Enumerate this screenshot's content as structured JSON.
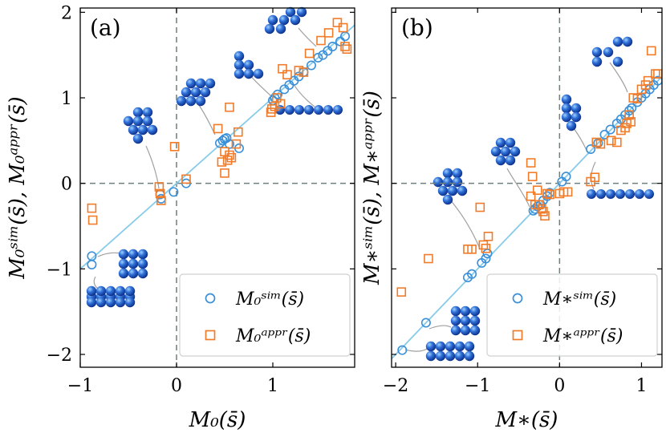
{
  "chart_data": [
    {
      "type": "scatter",
      "panel_label": "(a)",
      "xlabel": "M₀(s̄)",
      "ylabel": "M₀ˢⁱᵐ(s̄), M₀ᵃᵖᵖʳ(s̄)",
      "xlim": [
        -1,
        1.85
      ],
      "ylim": [
        -2.15,
        2.05
      ],
      "xticks": [
        -1,
        0,
        1
      ],
      "yticks": [
        -2,
        -1,
        0,
        1,
        2
      ],
      "xtick_labels": [
        "−1",
        "0",
        "1"
      ],
      "ytick_labels": [
        "−2",
        "−1",
        "0",
        "1",
        "2"
      ],
      "legend": [
        {
          "name": "sim",
          "label": "M₀ˢⁱᵐ(s̄)",
          "marker": "circle",
          "color": "#3a8fd9"
        },
        {
          "name": "appr",
          "label": "M₀ᵃᵖᵖʳ(s̄)",
          "marker": "square",
          "color": "#f07c2a"
        }
      ],
      "legend_position": "bottom-right",
      "diagonal": true,
      "series": [
        {
          "name": "sim",
          "points": [
            [
              -0.88,
              -0.85
            ],
            [
              -0.88,
              -0.95
            ],
            [
              -0.17,
              -0.13
            ],
            [
              -0.16,
              -0.18
            ],
            [
              -0.03,
              -0.1
            ],
            [
              0.1,
              0.0
            ],
            [
              0.45,
              0.47
            ],
            [
              0.48,
              0.5
            ],
            [
              0.5,
              0.52
            ],
            [
              0.52,
              0.53
            ],
            [
              0.55,
              0.46
            ],
            [
              0.65,
              0.41
            ],
            [
              1.0,
              0.97
            ],
            [
              1.02,
              1.0
            ],
            [
              1.05,
              1.04
            ],
            [
              1.12,
              1.1
            ],
            [
              1.17,
              1.15
            ],
            [
              1.22,
              1.2
            ],
            [
              1.27,
              1.25
            ],
            [
              1.32,
              1.3
            ],
            [
              1.4,
              1.38
            ],
            [
              1.47,
              1.47
            ],
            [
              1.52,
              1.5
            ],
            [
              1.57,
              1.55
            ],
            [
              1.62,
              1.6
            ],
            [
              1.7,
              1.66
            ],
            [
              1.75,
              1.72
            ]
          ]
        },
        {
          "name": "appr",
          "points": [
            [
              -0.88,
              -0.29
            ],
            [
              -0.87,
              -0.43
            ],
            [
              -0.18,
              -0.04
            ],
            [
              -0.17,
              -0.12
            ],
            [
              -0.16,
              -0.2
            ],
            [
              -0.02,
              0.43
            ],
            [
              0.1,
              0.05
            ],
            [
              0.43,
              0.64
            ],
            [
              0.47,
              0.25
            ],
            [
              0.5,
              0.12
            ],
            [
              0.5,
              0.37
            ],
            [
              0.53,
              0.27
            ],
            [
              0.55,
              0.89
            ],
            [
              0.55,
              0.33
            ],
            [
              0.57,
              0.3
            ],
            [
              0.62,
              0.46
            ],
            [
              0.64,
              0.6
            ],
            [
              0.98,
              0.83
            ],
            [
              0.99,
              0.87
            ],
            [
              1.02,
              0.9
            ],
            [
              1.04,
              1.0
            ],
            [
              1.08,
              0.93
            ],
            [
              1.1,
              1.34
            ],
            [
              1.15,
              1.27
            ],
            [
              1.27,
              1.32
            ],
            [
              1.32,
              1.3
            ],
            [
              1.38,
              1.52
            ],
            [
              1.5,
              1.67
            ],
            [
              1.58,
              1.76
            ],
            [
              1.67,
              1.88
            ],
            [
              1.73,
              1.82
            ],
            [
              1.75,
              1.6
            ],
            [
              1.77,
              1.57
            ]
          ]
        }
      ]
    },
    {
      "type": "scatter",
      "panel_label": "(b)",
      "xlabel": "M∗(s̄)",
      "ylabel": "M∗ˢⁱᵐ(s̄), M∗ᵃᵖᵖʳ(s̄)",
      "xlim": [
        -2.05,
        1.25
      ],
      "ylim": [
        -2.15,
        2.05
      ],
      "xticks": [
        -2,
        -1,
        0,
        1
      ],
      "yticks": [
        -2,
        -1,
        0,
        1,
        2
      ],
      "xtick_labels": [
        "−2",
        "−1",
        "0",
        "1"
      ],
      "ytick_labels": [
        "−2",
        "−1",
        "0",
        "1",
        "2"
      ],
      "legend": [
        {
          "name": "sim",
          "label": "M∗ˢⁱᵐ(s̄)",
          "marker": "circle",
          "color": "#3a8fd9"
        },
        {
          "name": "appr",
          "label": "M∗ᵃᵖᵖʳ(s̄)",
          "marker": "square",
          "color": "#f07c2a"
        }
      ],
      "legend_position": "bottom-right",
      "diagonal": true,
      "series": [
        {
          "name": "sim",
          "points": [
            [
              -1.92,
              -1.95
            ],
            [
              -1.63,
              -1.63
            ],
            [
              -1.12,
              -1.1
            ],
            [
              -1.07,
              -1.06
            ],
            [
              -0.95,
              -0.93
            ],
            [
              -0.9,
              -0.88
            ],
            [
              -0.88,
              -0.82
            ],
            [
              -0.32,
              -0.32
            ],
            [
              -0.3,
              -0.3
            ],
            [
              -0.27,
              -0.27
            ],
            [
              -0.23,
              -0.25
            ],
            [
              -0.2,
              -0.2
            ],
            [
              -0.15,
              -0.15
            ],
            [
              -0.12,
              -0.11
            ],
            [
              0.03,
              0.02
            ],
            [
              0.08,
              0.08
            ],
            [
              0.38,
              0.4
            ],
            [
              0.47,
              0.47
            ],
            [
              0.55,
              0.57
            ],
            [
              0.62,
              0.63
            ],
            [
              0.7,
              0.7
            ],
            [
              0.75,
              0.75
            ],
            [
              0.8,
              0.8
            ],
            [
              0.85,
              0.85
            ],
            [
              0.88,
              0.88
            ],
            [
              0.95,
              0.95
            ],
            [
              1.0,
              1.0
            ],
            [
              1.05,
              1.05
            ],
            [
              1.1,
              1.1
            ],
            [
              1.15,
              1.15
            ],
            [
              1.2,
              1.2
            ]
          ]
        },
        {
          "name": "appr",
          "points": [
            [
              -1.93,
              -1.27
            ],
            [
              -1.6,
              -0.88
            ],
            [
              -1.12,
              -0.77
            ],
            [
              -1.07,
              -0.77
            ],
            [
              -0.97,
              -0.28
            ],
            [
              -0.93,
              -0.72
            ],
            [
              -0.9,
              -0.76
            ],
            [
              -0.87,
              -0.62
            ],
            [
              -0.35,
              0.24
            ],
            [
              -0.33,
              0.08
            ],
            [
              -0.35,
              -0.15
            ],
            [
              -0.3,
              -0.25
            ],
            [
              -0.27,
              -0.08
            ],
            [
              -0.25,
              -0.25
            ],
            [
              -0.22,
              -0.3
            ],
            [
              -0.2,
              -0.33
            ],
            [
              -0.18,
              -0.38
            ],
            [
              -0.15,
              -0.12
            ],
            [
              -0.12,
              -0.13
            ],
            [
              0.0,
              -0.12
            ],
            [
              0.05,
              -0.1
            ],
            [
              0.1,
              -0.1
            ],
            [
              0.38,
              0.02
            ],
            [
              0.43,
              0.07
            ],
            [
              0.45,
              0.48
            ],
            [
              0.5,
              0.46
            ],
            [
              0.63,
              0.5
            ],
            [
              0.7,
              0.48
            ],
            [
              0.75,
              0.62
            ],
            [
              0.8,
              0.65
            ],
            [
              0.82,
              0.7
            ],
            [
              0.85,
              0.8
            ],
            [
              0.87,
              0.72
            ],
            [
              0.9,
              1.0
            ],
            [
              0.95,
              0.99
            ],
            [
              1.0,
              1.1
            ],
            [
              1.05,
              1.15
            ],
            [
              1.08,
              1.2
            ],
            [
              1.12,
              1.55
            ],
            [
              1.17,
              1.28
            ],
            [
              1.2,
              1.28
            ]
          ]
        }
      ]
    }
  ]
}
